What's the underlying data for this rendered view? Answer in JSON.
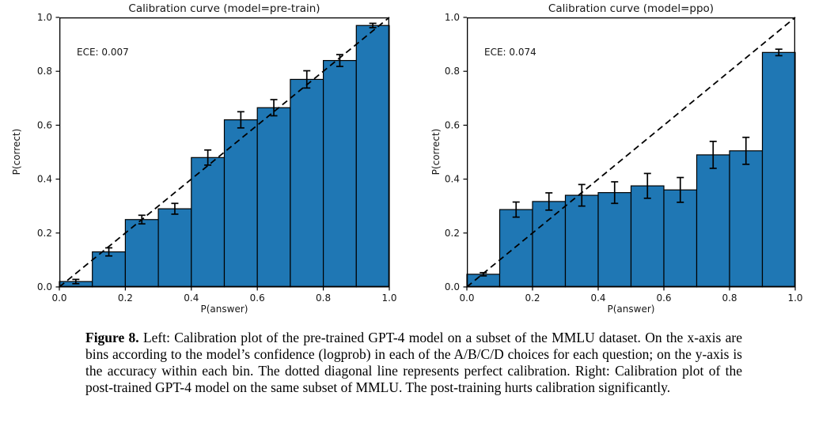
{
  "colors": {
    "bar_fill": "#1f77b4",
    "bar_edge": "#000000",
    "axis": "#000000",
    "diagonal": "#000000"
  },
  "figure": {
    "caption_bold": "Figure 8.",
    "caption_text": " Left: Calibration plot of the pre-trained GPT-4 model on a subset of the MMLU dataset. On the x-axis are bins according to the model’s confidence (logprob) in each of the A/B/C/D choices for each question; on the y-axis is the accuracy within each bin. The dotted diagonal line represents perfect calibration. Right: Calibration plot of the post-trained GPT-4 model on the same subset of MMLU. The post-training hurts calibration significantly."
  },
  "chart_data": [
    {
      "type": "bar",
      "title": "Calibration curve (model=pre-train)",
      "ece_label": "ECE: 0.007",
      "xlabel": "P(answer)",
      "ylabel": "P(correct)",
      "xlim": [
        0.0,
        1.0
      ],
      "ylim": [
        0.0,
        1.0
      ],
      "grid": false,
      "x_ticks": [
        "0.0",
        "0.2",
        "0.4",
        "0.6",
        "0.8",
        "1.0"
      ],
      "y_ticks": [
        "0.0",
        "0.2",
        "0.4",
        "0.6",
        "0.8",
        "1.0"
      ],
      "bin_width": 0.1,
      "bin_edges": [
        0.0,
        0.1,
        0.2,
        0.3,
        0.4,
        0.5,
        0.6,
        0.7,
        0.8,
        0.9,
        1.0
      ],
      "x": [
        0.05,
        0.15,
        0.25,
        0.35,
        0.45,
        0.55,
        0.65,
        0.75,
        0.85,
        0.95
      ],
      "values": [
        0.02,
        0.13,
        0.25,
        0.29,
        0.48,
        0.62,
        0.665,
        0.77,
        0.84,
        0.97
      ],
      "errors": [
        0.008,
        0.015,
        0.016,
        0.02,
        0.028,
        0.03,
        0.03,
        0.032,
        0.022,
        0.008
      ],
      "diagonal_line": "y=x dashed, perfect calibration"
    },
    {
      "type": "bar",
      "title": "Calibration curve (model=ppo)",
      "ece_label": "ECE: 0.074",
      "xlabel": "P(answer)",
      "ylabel": "P(correct)",
      "xlim": [
        0.0,
        1.0
      ],
      "ylim": [
        0.0,
        1.0
      ],
      "grid": false,
      "x_ticks": [
        "0.0",
        "0.2",
        "0.4",
        "0.6",
        "0.8",
        "1.0"
      ],
      "y_ticks": [
        "0.0",
        "0.2",
        "0.4",
        "0.6",
        "0.8",
        "1.0"
      ],
      "bin_width": 0.1,
      "bin_edges": [
        0.0,
        0.1,
        0.2,
        0.3,
        0.4,
        0.5,
        0.6,
        0.7,
        0.8,
        0.9,
        1.0
      ],
      "x": [
        0.05,
        0.15,
        0.25,
        0.35,
        0.45,
        0.55,
        0.65,
        0.75,
        0.85,
        0.95
      ],
      "values": [
        0.047,
        0.287,
        0.317,
        0.34,
        0.35,
        0.375,
        0.36,
        0.49,
        0.505,
        0.87
      ],
      "errors": [
        0.006,
        0.028,
        0.032,
        0.04,
        0.04,
        0.046,
        0.046,
        0.05,
        0.05,
        0.012
      ],
      "diagonal_line": "y=x dashed, perfect calibration"
    }
  ]
}
